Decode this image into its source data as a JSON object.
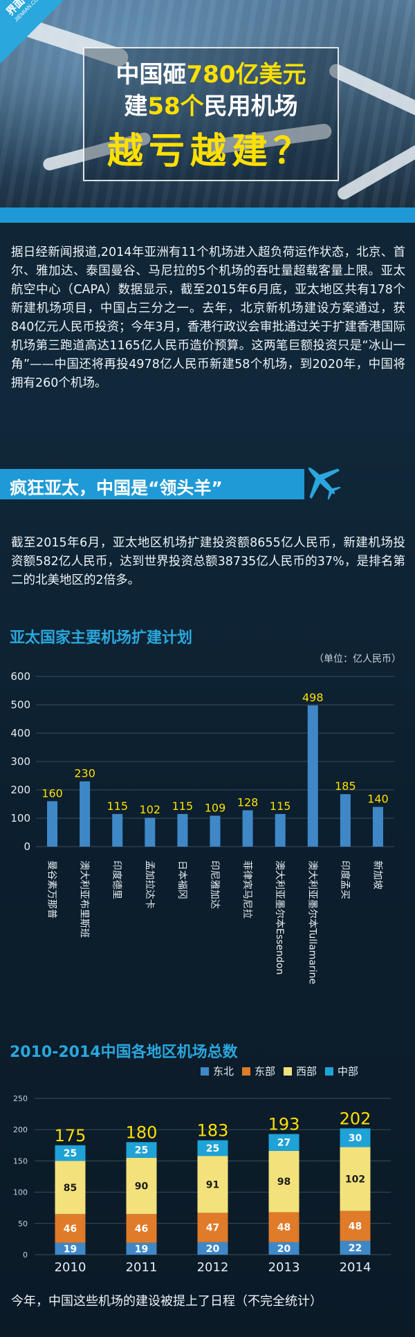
{
  "header": {
    "logo_cn": "界面",
    "logo_en": "JIEMIAN.COM",
    "title_line1_a": "中国砸",
    "title_line1_b": "780亿美元",
    "title_line2_a": "建",
    "title_line2_b": "58个",
    "title_line2_c": "民用机场",
    "title_line3": "越亏越建？"
  },
  "intro": "据日经新闻报道,2014年亚洲有11个机场进入超负荷运作状态，北京、首尔、雅加达、泰国曼谷、马尼拉的5个机场的吞吐量超载客量上限。亚太航空中心（CAPA）数据显示，截至2015年6月底，亚太地区共有178个新建机场项目，中国占三分之一。去年，北京新机场建设方案通过，获840亿元人民币投资；今年3月，香港行政议会审批通过关于扩建香港国际机场第三跑道高达1165亿人民币造价预算。这两笔巨额投资只是“冰山一角”——中国还将再投4978亿人民币新建58个机场，到2020年，中国将拥有260个机场。",
  "section": {
    "banner": "疯狂亚太，中国是“领头羊”",
    "para": "截至2015年6月，亚太地区机场扩建投资额8655亿人民币，新建机场投资额582亿人民币，达到世界投资总额38735亿人民币的37%，是排名第二的北美地区的2倍多。"
  },
  "footer_text": "今年，中国这些机场的建设被提上了日程（不完全统计）",
  "colors": {
    "accent": "#1f9ad6",
    "bar_blue": "#3f88c8",
    "label_yellow": "#ffe000",
    "dongbei": "#3f88c8",
    "dongbu": "#e07b2a",
    "xibu": "#f3e27c",
    "zhongbu": "#1fa3d6"
  },
  "chart_data": [
    {
      "type": "bar",
      "title": "亚太国家主要机场扩建计划",
      "unit": "（单位：亿人民币）",
      "categories": [
        "曼谷素万那普",
        "澳大利亚布里斯班",
        "印度德里",
        "孟加拉达卡",
        "日本福冈",
        "印尼雅加达",
        "菲律宾马尼拉",
        "澳大利亚墨尔本Essendon",
        "澳大利亚墨尔本Tullamarine",
        "印度孟买",
        "新加坡"
      ],
      "values": [
        160,
        230,
        115,
        102,
        115,
        109,
        128,
        115,
        498,
        185,
        140
      ],
      "ylim": [
        0,
        600
      ],
      "yticks": [
        0,
        100,
        200,
        300,
        400,
        500,
        600
      ],
      "grid": true
    },
    {
      "type": "bar",
      "stacked": true,
      "title": "2010-2014中国各地区机场总数",
      "categories": [
        "2010",
        "2011",
        "2012",
        "2013",
        "2014"
      ],
      "series": [
        {
          "name": "东北",
          "values": [
            19,
            19,
            20,
            20,
            22
          ]
        },
        {
          "name": "东部",
          "values": [
            46,
            46,
            47,
            48,
            48
          ]
        },
        {
          "name": "西部",
          "values": [
            85,
            90,
            91,
            98,
            102
          ]
        },
        {
          "name": "中部",
          "values": [
            25,
            25,
            25,
            27,
            30
          ]
        }
      ],
      "totals": [
        175,
        180,
        183,
        193,
        202
      ],
      "ylim": [
        0,
        250
      ],
      "yticks": [
        0,
        50,
        100,
        150,
        200,
        250
      ],
      "legend": "top-right",
      "grid": true
    }
  ]
}
